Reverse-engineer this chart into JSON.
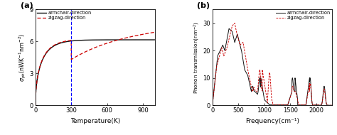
{
  "panel_a": {
    "label": "(a)",
    "xlabel": "Temperature(K)",
    "xlim": [
      0,
      1000
    ],
    "ylim": [
      0,
      9
    ],
    "yticks": [
      0,
      3,
      6,
      9
    ],
    "xticks": [
      0,
      300,
      600,
      900
    ],
    "vline_x": 300,
    "armchair_color": "#111111",
    "zigzag_color": "#cc0000",
    "legend_labels": [
      "armchair-direction",
      "zigzag-direction"
    ]
  },
  "panel_b": {
    "label": "(b)",
    "xlabel": "Frequency(cm⁻¹)",
    "xlim": [
      0,
      2300
    ],
    "ylim": [
      0,
      35
    ],
    "yticks": [
      0,
      10,
      20,
      30
    ],
    "xticks": [
      0,
      500,
      1000,
      1500,
      2000
    ],
    "armchair_color": "#111111",
    "zigzag_color": "#cc0000",
    "legend_labels": [
      "armchair-direction",
      "zigzag-direction"
    ]
  }
}
